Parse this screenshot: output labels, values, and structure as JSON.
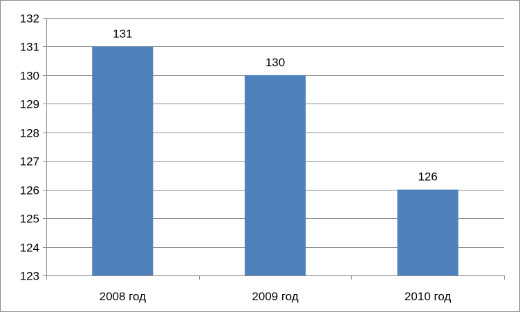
{
  "chart_data": {
    "type": "bar",
    "categories": [
      "2008 год",
      "2009 год",
      "2010 год"
    ],
    "values": [
      131,
      130,
      126
    ],
    "data_labels": [
      "131",
      "130",
      "126"
    ],
    "ylim": [
      123,
      132
    ],
    "yticks": [
      "123",
      "124",
      "125",
      "126",
      "127",
      "128",
      "129",
      "130",
      "131",
      "132"
    ],
    "title": "",
    "xlabel": "",
    "ylabel": "",
    "grid": true,
    "legend": "none",
    "bar_color": "#4f81bd",
    "grid_color": "#8c8c8c"
  }
}
